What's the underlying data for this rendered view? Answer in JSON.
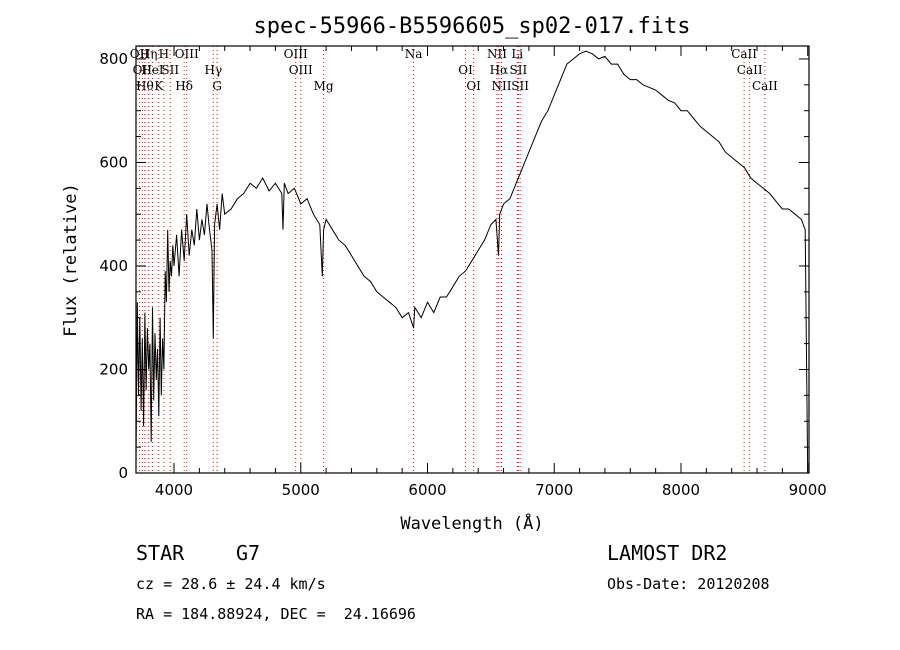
{
  "chart_data": {
    "type": "line",
    "title": "spec-55966-B5596605_sp02-017.fits",
    "xlabel": "Wavelength (Å)",
    "ylabel": "Flux (relative)",
    "xlim": [
      3700,
      9010
    ],
    "ylim": [
      0,
      825
    ],
    "xticks": [
      4000,
      5000,
      6000,
      7000,
      8000,
      9000
    ],
    "yticks": [
      0,
      200,
      400,
      600,
      800
    ],
    "grid": false,
    "line_color": "#000000",
    "marker_color": "#ff0000",
    "series": [
      {
        "x": [
          3700,
          3710,
          3720,
          3730,
          3740,
          3750,
          3760,
          3770,
          3780,
          3790,
          3800,
          3810,
          3820,
          3830,
          3840,
          3850,
          3860,
          3870,
          3880,
          3890,
          3900,
          3910,
          3920,
          3930,
          3940,
          3950,
          3960,
          3970,
          3980,
          3990,
          4000,
          4020,
          4040,
          4060,
          4080,
          4100,
          4120,
          4140,
          4160,
          4180,
          4200,
          4220,
          4240,
          4260,
          4280,
          4300,
          4310,
          4320,
          4340,
          4360,
          4380,
          4400,
          4450,
          4500,
          4550,
          4600,
          4650,
          4700,
          4750,
          4800,
          4850,
          4860,
          4870,
          4900,
          4950,
          5000,
          5050,
          5100,
          5150,
          5170,
          5180,
          5200,
          5250,
          5300,
          5350,
          5400,
          5450,
          5500,
          5550,
          5600,
          5650,
          5700,
          5750,
          5800,
          5850,
          5890,
          5900,
          5950,
          6000,
          6050,
          6100,
          6150,
          6200,
          6250,
          6300,
          6350,
          6400,
          6450,
          6500,
          6540,
          6560,
          6570,
          6600,
          6650,
          6700,
          6750,
          6800,
          6850,
          6900,
          6950,
          7000,
          7050,
          7100,
          7150,
          7200,
          7250,
          7300,
          7350,
          7400,
          7450,
          7500,
          7550,
          7600,
          7650,
          7700,
          7750,
          7800,
          7850,
          7900,
          7950,
          8000,
          8050,
          8100,
          8150,
          8200,
          8250,
          8300,
          8350,
          8400,
          8450,
          8500,
          8550,
          8600,
          8650,
          8700,
          8750,
          8800,
          8850,
          8900,
          8950,
          8980,
          9000
        ],
        "y": [
          20,
          330,
          150,
          300,
          120,
          260,
          90,
          310,
          160,
          280,
          200,
          250,
          60,
          320,
          140,
          270,
          180,
          240,
          110,
          300,
          150,
          260,
          200,
          390,
          330,
          470,
          350,
          410,
          380,
          440,
          400,
          460,
          380,
          470,
          410,
          500,
          420,
          470,
          440,
          510,
          450,
          490,
          460,
          520,
          470,
          430,
          260,
          480,
          520,
          470,
          540,
          500,
          510,
          530,
          540,
          560,
          550,
          570,
          545,
          560,
          540,
          470,
          560,
          540,
          550,
          520,
          530,
          500,
          480,
          380,
          470,
          490,
          470,
          450,
          440,
          420,
          400,
          380,
          370,
          350,
          340,
          330,
          320,
          300,
          310,
          280,
          320,
          300,
          330,
          310,
          340,
          340,
          360,
          380,
          390,
          410,
          430,
          450,
          480,
          490,
          420,
          500,
          520,
          530,
          560,
          590,
          620,
          650,
          680,
          700,
          730,
          760,
          790,
          800,
          810,
          815,
          810,
          800,
          805,
          790,
          790,
          770,
          760,
          760,
          750,
          745,
          740,
          730,
          720,
          715,
          700,
          700,
          685,
          670,
          660,
          650,
          640,
          620,
          610,
          600,
          590,
          570,
          560,
          550,
          540,
          525,
          510,
          510,
          500,
          490,
          470,
          0
        ]
      }
    ],
    "line_markers": [
      {
        "wave": 3727,
        "rows": [
          [
            "OII",
            3727
          ]
        ]
      },
      {
        "wave": 3750,
        "rows": [
          [
            "OII",
            3729
          ]
        ]
      },
      {
        "wave": 3770,
        "rows": [
          [
            "Hθ",
            3797
          ]
        ]
      },
      {
        "wave": 3800,
        "rows": [
          [
            "Hη",
            3835
          ]
        ]
      },
      {
        "wave": 3830,
        "rows": [
          [
            "HeI",
            3889
          ]
        ]
      },
      {
        "wave": 3880,
        "rows": [
          [
            "K",
            3934
          ]
        ]
      },
      {
        "wave": 3920,
        "rows": [
          [
            "H",
            3969
          ]
        ]
      },
      {
        "wave": 3970,
        "rows": [
          [
            "SII",
            4072
          ]
        ]
      },
      {
        "wave": 4080,
        "rows": [
          [
            "Hδ",
            4102
          ]
        ]
      },
      {
        "wave": 4100,
        "rows": [
          [
            "OIII",
            4363
          ]
        ]
      },
      {
        "wave": 4310,
        "rows": [
          [
            "Hγ",
            4340
          ]
        ]
      },
      {
        "wave": 4340,
        "rows": [
          [
            "G",
            4305
          ]
        ]
      },
      {
        "wave": 4960,
        "rows": [
          [
            "OIII",
            4959
          ]
        ]
      },
      {
        "wave": 5000,
        "rows": [
          [
            "OIII",
            5007
          ]
        ]
      },
      {
        "wave": 5180,
        "rows": [
          [
            "Mg",
            5175
          ]
        ]
      },
      {
        "wave": 5890,
        "rows": [
          [
            "Na",
            5894
          ]
        ]
      },
      {
        "wave": 6300,
        "rows": [
          [
            "OI",
            6300
          ]
        ]
      },
      {
        "wave": 6364,
        "rows": [
          [
            "OI",
            6364
          ]
        ]
      },
      {
        "wave": 6548,
        "rows": [
          [
            "NII",
            6548
          ]
        ]
      },
      {
        "wave": 6563,
        "rows": [
          [
            "Hα",
            6563
          ]
        ]
      },
      {
        "wave": 6584,
        "rows": [
          [
            "NII",
            6584
          ]
        ]
      },
      {
        "wave": 6708,
        "rows": [
          [
            "Li",
            6708
          ]
        ]
      },
      {
        "wave": 6717,
        "rows": [
          [
            "SII",
            6717
          ]
        ]
      },
      {
        "wave": 6731,
        "rows": [
          [
            "SII",
            6731
          ]
        ]
      },
      {
        "wave": 8498,
        "rows": [
          [
            "CaII",
            8498
          ]
        ]
      },
      {
        "wave": 8542,
        "rows": [
          [
            "CaII",
            8542
          ]
        ]
      },
      {
        "wave": 8662,
        "rows": [
          [
            "CaII",
            8662
          ]
        ]
      }
    ]
  },
  "info": {
    "obj_class": "STAR",
    "subclass": "G7",
    "survey": "LAMOST DR2",
    "cz": "cz = 28.6 ± 24.4 km/s",
    "obs_date": "Obs-Date: 20120208",
    "coords": "RA = 184.88924, DEC =  24.16696"
  }
}
